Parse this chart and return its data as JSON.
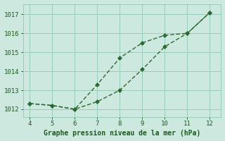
{
  "line1_x": [
    4,
    5,
    6,
    7,
    8,
    9,
    10,
    11,
    12
  ],
  "line1_y": [
    1012.3,
    1012.2,
    1012.0,
    1012.4,
    1013.0,
    1014.1,
    1015.3,
    1016.0,
    1017.1
  ],
  "line2_x": [
    4,
    5,
    6,
    7,
    8,
    9,
    10,
    11,
    12
  ],
  "line2_y": [
    1012.3,
    1012.2,
    1012.0,
    1013.3,
    1014.7,
    1015.5,
    1015.9,
    1016.0,
    1017.1
  ],
  "line_color": "#2d6a2d",
  "bg_color": "#cce8df",
  "grid_color": "#99ccbb",
  "xlabel": "Graphe pression niveau de la mer (hPa)",
  "xlabel_color": "#1a5c1a",
  "tick_color": "#1a5c1a",
  "xlim": [
    3.7,
    12.5
  ],
  "ylim": [
    1011.6,
    1017.55
  ],
  "yticks": [
    1012,
    1013,
    1014,
    1015,
    1016,
    1017
  ],
  "xticks": [
    4,
    5,
    6,
    7,
    8,
    9,
    10,
    11,
    12
  ],
  "marker": "D",
  "marker_size": 3,
  "line_width": 1.0
}
